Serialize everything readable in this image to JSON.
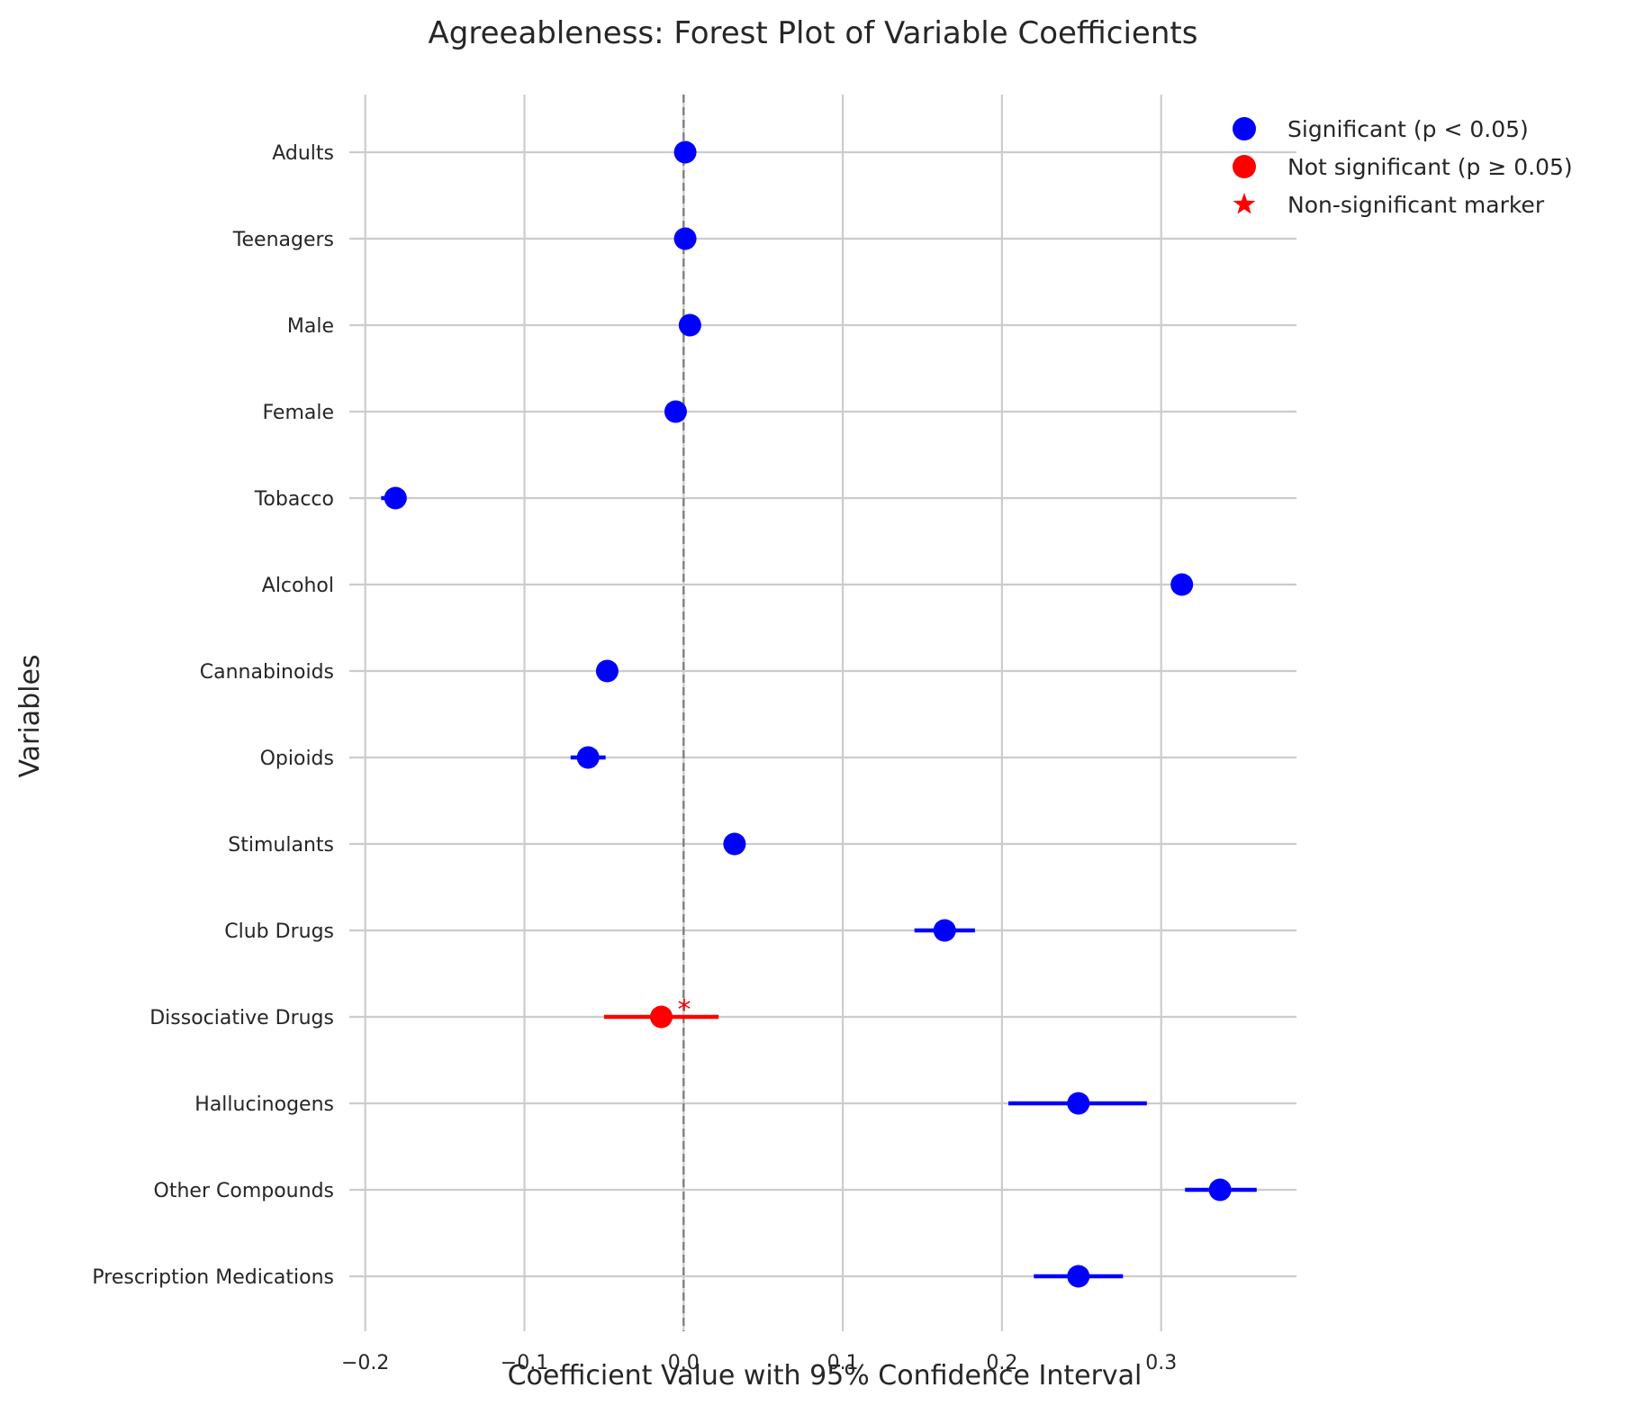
{
  "chart_data": {
    "type": "scatter",
    "title": "Agreeableness: Forest Plot of Variable Coefficients",
    "xlabel": "Coefficient Value with 95% Confidence Interval",
    "ylabel": "Variables",
    "xlim": [
      -0.21,
      0.385
    ],
    "xticks": [
      -0.2,
      -0.1,
      0.0,
      0.1,
      0.2,
      0.3
    ],
    "xtick_labels": [
      "−0.2",
      "−0.1",
      "0.0",
      "0.1",
      "0.2",
      "0.3"
    ],
    "reference_line": 0.0,
    "grid": true,
    "legend_position": "top-right",
    "legend": [
      {
        "label": "Significant (p < 0.05)",
        "marker": "circle",
        "color": "#0000ff"
      },
      {
        "label": "Not significant (p ≥ 0.05)",
        "marker": "circle",
        "color": "#ff0000"
      },
      {
        "label": "Non-significant marker",
        "marker": "star",
        "color": "#ff0000"
      }
    ],
    "significance_annotation": "*",
    "colors": {
      "significant": "#0000ff",
      "not_significant": "#ff0000"
    },
    "points": [
      {
        "label": "Adults",
        "coef": 0.001,
        "ci_low": -0.003,
        "ci_high": 0.005,
        "significant": true
      },
      {
        "label": "Teenagers",
        "coef": 0.001,
        "ci_low": -0.003,
        "ci_high": 0.005,
        "significant": true
      },
      {
        "label": "Male",
        "coef": 0.004,
        "ci_low": 0.0,
        "ci_high": 0.008,
        "significant": true
      },
      {
        "label": "Female",
        "coef": -0.005,
        "ci_low": -0.009,
        "ci_high": -0.001,
        "significant": true
      },
      {
        "label": "Tobacco",
        "coef": -0.181,
        "ci_low": -0.19,
        "ci_high": -0.174,
        "significant": true
      },
      {
        "label": "Alcohol",
        "coef": 0.313,
        "ci_low": 0.309,
        "ci_high": 0.317,
        "significant": true
      },
      {
        "label": "Cannabinoids",
        "coef": -0.048,
        "ci_low": -0.052,
        "ci_high": -0.044,
        "significant": true
      },
      {
        "label": "Opioids",
        "coef": -0.06,
        "ci_low": -0.071,
        "ci_high": -0.049,
        "significant": true
      },
      {
        "label": "Stimulants",
        "coef": 0.032,
        "ci_low": 0.028,
        "ci_high": 0.036,
        "significant": true
      },
      {
        "label": "Club Drugs",
        "coef": 0.164,
        "ci_low": 0.145,
        "ci_high": 0.183,
        "significant": true
      },
      {
        "label": "Dissociative Drugs",
        "coef": -0.014,
        "ci_low": -0.05,
        "ci_high": 0.022,
        "significant": false
      },
      {
        "label": "Hallucinogens",
        "coef": 0.248,
        "ci_low": 0.204,
        "ci_high": 0.291,
        "significant": true
      },
      {
        "label": "Other Compounds",
        "coef": 0.337,
        "ci_low": 0.315,
        "ci_high": 0.36,
        "significant": true
      },
      {
        "label": "Prescription Medications",
        "coef": 0.248,
        "ci_low": 0.22,
        "ci_high": 0.276,
        "significant": true
      }
    ]
  }
}
